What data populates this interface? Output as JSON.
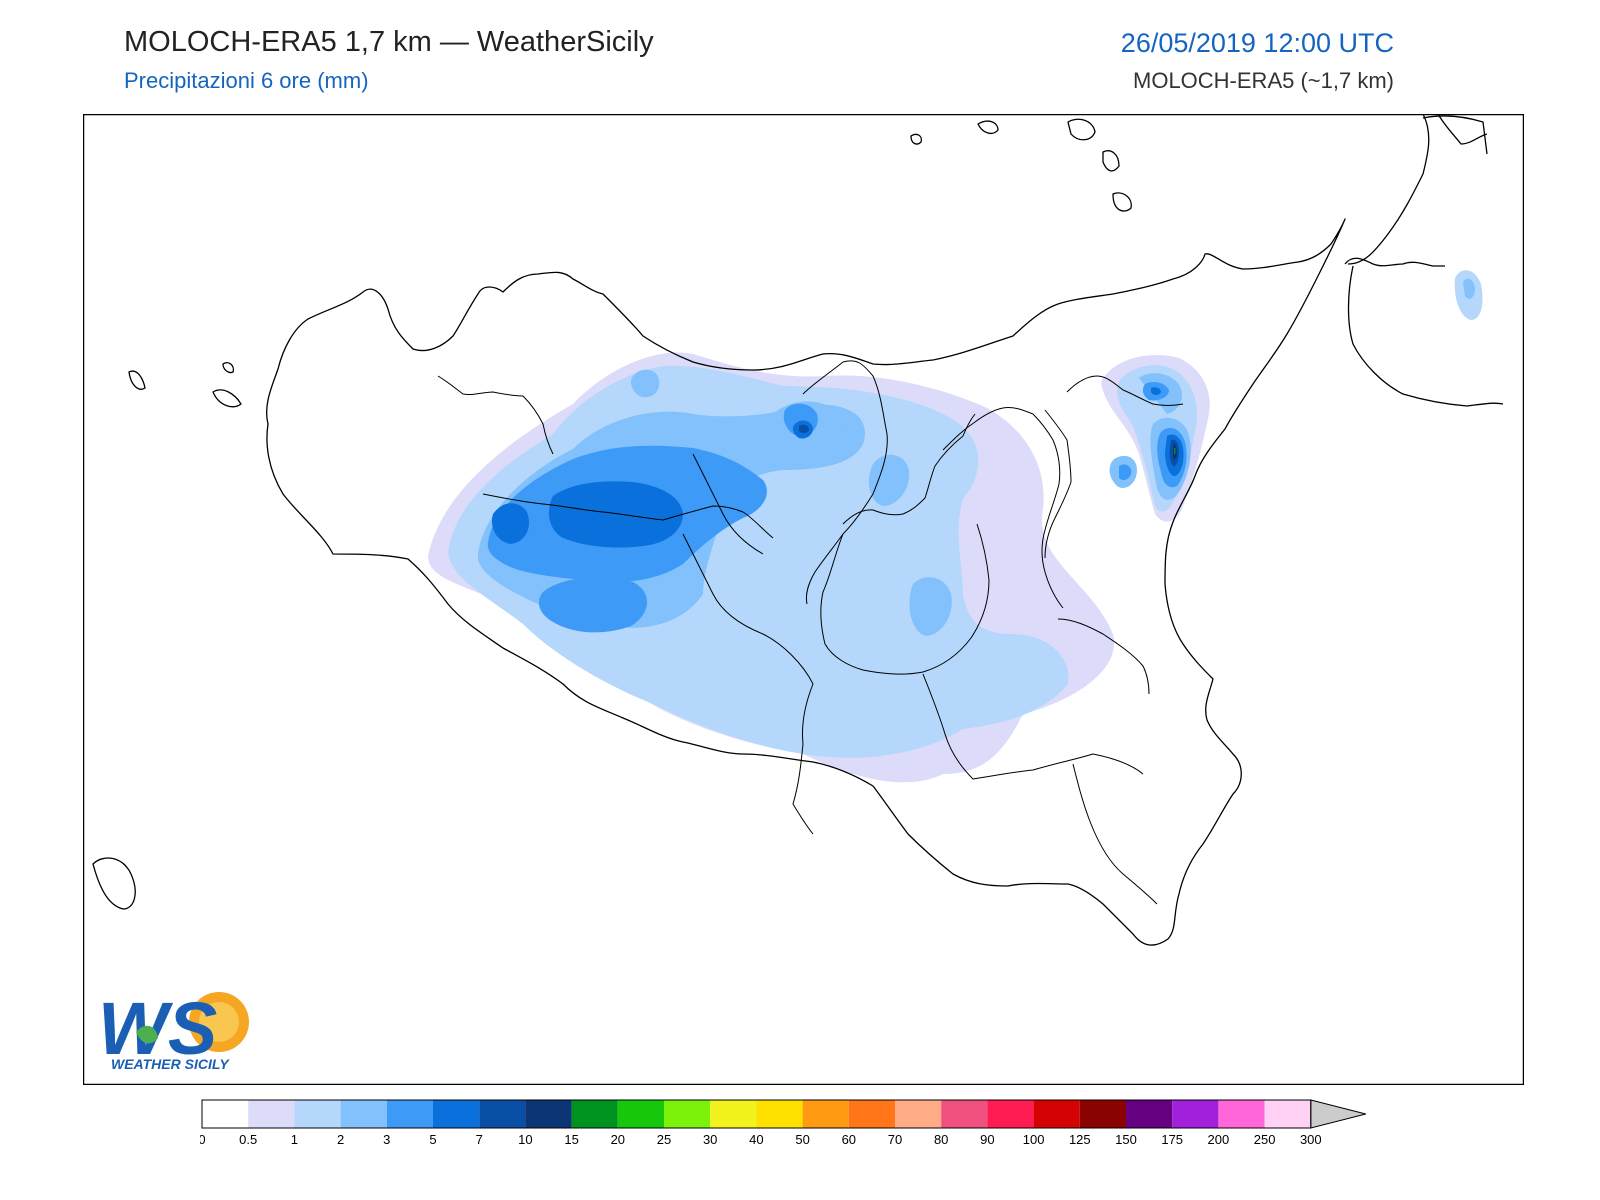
{
  "header": {
    "title": "MOLOCH-ERA5 1,7 km — WeatherSicily",
    "subtitle": "Precipitazioni 6 ore (mm)",
    "datetime": "26/05/2019 12:00 UTC",
    "model": "MOLOCH-ERA5 (~1,7 km)"
  },
  "logo": {
    "letters": "WS",
    "label": "WEATHER SICILY"
  },
  "legend": {
    "levels": [
      "0",
      "0.5",
      "1",
      "2",
      "3",
      "5",
      "7",
      "10",
      "15",
      "20",
      "25",
      "30",
      "40",
      "50",
      "60",
      "70",
      "80",
      "90",
      "100",
      "125",
      "150",
      "175",
      "200",
      "250",
      "300"
    ],
    "colors": [
      "#ffffff",
      "#dcdcfa",
      "#b4d7fb",
      "#82c1fb",
      "#3d9bf7",
      "#0a70dc",
      "#0a4fa6",
      "#0b3575",
      "#00921f",
      "#16c70c",
      "#7cf10a",
      "#f2f21c",
      "#ffe100",
      "#ff9a12",
      "#ff7517",
      "#ffab86",
      "#f0507d",
      "#ff1c52",
      "#d50204",
      "#8a0300",
      "#650080",
      "#a120dc",
      "#ff66d9",
      "#ffd1f4"
    ],
    "extend_color": "#cccccc"
  },
  "colors": {
    "title_blue": "#1565c0",
    "border": "#000000"
  }
}
